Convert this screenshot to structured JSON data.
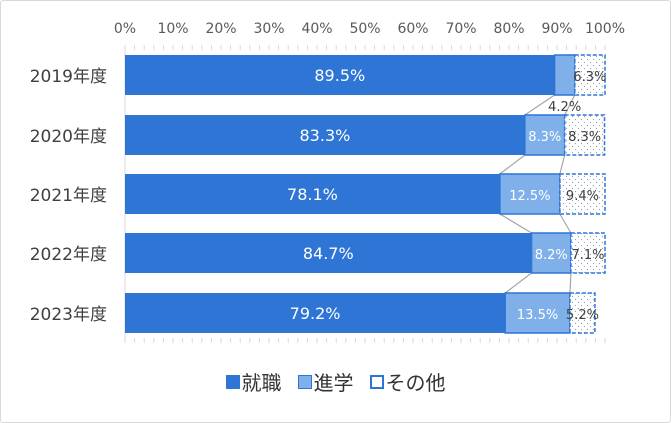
{
  "chart_data": {
    "type": "bar",
    "orientation": "horizontal",
    "stacked": true,
    "percent": true,
    "categories": [
      "2019年度",
      "2020年度",
      "2021年度",
      "2022年度",
      "2023年度"
    ],
    "series": [
      {
        "name": "就職",
        "values": [
          89.5,
          83.3,
          78.1,
          84.7,
          79.2
        ],
        "labels": [
          "89.5%",
          "83.3%",
          "78.1%",
          "84.7%",
          "79.2%"
        ],
        "color": "#2e75d6"
      },
      {
        "name": "進学",
        "values": [
          4.2,
          8.3,
          12.5,
          8.2,
          13.5
        ],
        "labels": [
          "4.2%",
          "8.3%",
          "12.5%",
          "8.2%",
          "13.5%"
        ],
        "color": "#7fb0ea"
      },
      {
        "name": "その他",
        "values": [
          6.3,
          8.3,
          9.4,
          7.1,
          5.2
        ],
        "labels": [
          "6.3%",
          "8.3%",
          "9.4%",
          "7.1%",
          "5.2%"
        ],
        "color": "#ffffff",
        "pattern": "dots"
      }
    ],
    "xlim": [
      0,
      100
    ],
    "xticks": [
      "0%",
      "10%",
      "20%",
      "30%",
      "40%",
      "50%",
      "60%",
      "70%",
      "80%",
      "90%",
      "100%"
    ],
    "series_lines": true,
    "legend_position": "bottom",
    "grid": false
  }
}
